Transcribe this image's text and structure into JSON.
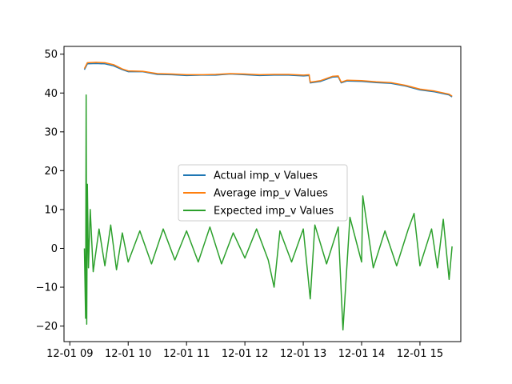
{
  "chart_data": {
    "type": "line",
    "title": "",
    "xlabel": "",
    "ylabel": "",
    "x_unit": "hour of day (2024-12-01)",
    "xlim": [
      8.9,
      15.7
    ],
    "ylim": [
      -24,
      52
    ],
    "grid": false,
    "legend_position": "center",
    "x_ticks": [
      {
        "value": 9,
        "label": "12-01 09"
      },
      {
        "value": 10,
        "label": "12-01 10"
      },
      {
        "value": 11,
        "label": "12-01 11"
      },
      {
        "value": 12,
        "label": "12-01 12"
      },
      {
        "value": 13,
        "label": "12-01 13"
      },
      {
        "value": 14,
        "label": "12-01 14"
      },
      {
        "value": 15,
        "label": "12-01 15"
      }
    ],
    "y_ticks": [
      {
        "value": 50,
        "label": "50"
      },
      {
        "value": 40,
        "label": "40"
      },
      {
        "value": 30,
        "label": "30"
      },
      {
        "value": 20,
        "label": "20"
      },
      {
        "value": 10,
        "label": "10"
      },
      {
        "value": 0,
        "label": "0"
      },
      {
        "value": -10,
        "label": "−10"
      },
      {
        "value": -20,
        "label": "−20"
      }
    ],
    "series": [
      {
        "name": "Actual imp_v Values",
        "color": "#1f77b4",
        "x": [
          9.25,
          9.3,
          9.45,
          9.6,
          9.75,
          9.9,
          10.0,
          10.25,
          10.5,
          10.75,
          11.0,
          11.25,
          11.5,
          11.75,
          12.0,
          12.25,
          12.5,
          12.75,
          13.0,
          13.1,
          13.12,
          13.3,
          13.5,
          13.6,
          13.65,
          13.75,
          14.0,
          14.25,
          14.5,
          14.75,
          15.0,
          15.25,
          15.5,
          15.55
        ],
        "y": [
          46.0,
          47.5,
          47.6,
          47.5,
          47.0,
          46.0,
          45.5,
          45.5,
          44.8,
          44.7,
          44.5,
          44.6,
          44.6,
          44.9,
          44.7,
          44.5,
          44.6,
          44.6,
          44.4,
          44.5,
          42.6,
          43.0,
          44.1,
          44.2,
          42.6,
          43.1,
          43.0,
          42.7,
          42.5,
          41.8,
          40.8,
          40.3,
          39.5,
          39.0
        ]
      },
      {
        "name": "Average imp_v Values",
        "color": "#ff7f0e",
        "x": [
          9.25,
          9.3,
          9.45,
          9.6,
          9.75,
          9.9,
          10.0,
          10.25,
          10.5,
          10.75,
          11.0,
          11.25,
          11.5,
          11.75,
          12.0,
          12.25,
          12.5,
          12.75,
          13.0,
          13.1,
          13.12,
          13.3,
          13.5,
          13.6,
          13.65,
          13.75,
          14.0,
          14.25,
          14.5,
          14.75,
          15.0,
          15.25,
          15.5,
          15.55
        ],
        "y": [
          46.3,
          47.8,
          47.9,
          47.8,
          47.3,
          46.2,
          45.7,
          45.6,
          45.0,
          44.9,
          44.7,
          44.7,
          44.8,
          45.0,
          44.9,
          44.7,
          44.8,
          44.8,
          44.6,
          44.7,
          42.8,
          43.2,
          44.3,
          44.4,
          42.8,
          43.3,
          43.2,
          42.9,
          42.7,
          42.0,
          41.0,
          40.5,
          39.7,
          39.2
        ]
      },
      {
        "name": "Expected imp_v Values",
        "color": "#2ca02c",
        "x": [
          9.25,
          9.27,
          9.28,
          9.29,
          9.3,
          9.32,
          9.35,
          9.4,
          9.5,
          9.6,
          9.7,
          9.8,
          9.9,
          10.0,
          10.2,
          10.4,
          10.6,
          10.8,
          11.0,
          11.2,
          11.4,
          11.6,
          11.8,
          12.0,
          12.2,
          12.4,
          12.5,
          12.6,
          12.8,
          13.0,
          13.12,
          13.2,
          13.4,
          13.6,
          13.68,
          13.8,
          14.0,
          14.02,
          14.2,
          14.4,
          14.6,
          14.8,
          14.9,
          15.0,
          15.2,
          15.3,
          15.4,
          15.5,
          15.55
        ],
        "y": [
          0.0,
          -18.0,
          39.5,
          -19.5,
          16.5,
          -5.0,
          10.0,
          -6.0,
          5.0,
          -4.5,
          6.0,
          -5.5,
          4.0,
          -3.5,
          4.5,
          -4.0,
          5.0,
          -3.0,
          4.5,
          -3.5,
          5.5,
          -4.0,
          4.0,
          -2.5,
          5.0,
          -3.0,
          -10.0,
          4.5,
          -3.5,
          5.0,
          -13.0,
          6.0,
          -4.0,
          5.5,
          -21.0,
          8.0,
          -3.5,
          13.5,
          -5.0,
          4.5,
          -4.5,
          5.0,
          9.0,
          -4.5,
          5.0,
          -5.0,
          7.5,
          -8.0,
          0.5
        ]
      }
    ]
  }
}
